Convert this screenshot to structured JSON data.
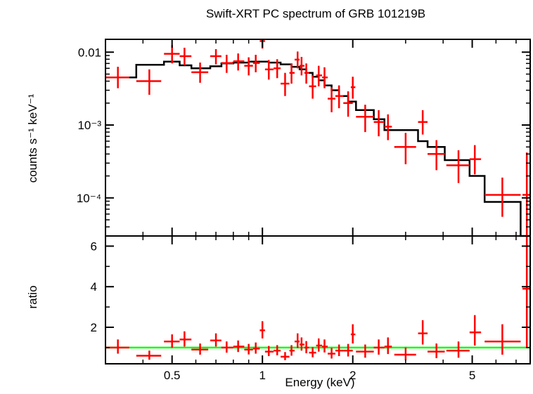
{
  "chart_data": [
    {
      "type": "scatter",
      "panel": "spectrum",
      "title": "Swift-XRT PC spectrum of GRB 101219B",
      "ylabel": "counts s⁻¹ keV⁻¹",
      "xscale": "log",
      "yscale": "log",
      "xlim": [
        0.3,
        7.8
      ],
      "ylim": [
        3e-05,
        0.015
      ],
      "y_ticks": [
        {
          "value": 0.01,
          "label": "0.01"
        },
        {
          "value": 0.001,
          "label": "10⁻³"
        },
        {
          "value": 0.0001,
          "label": "10⁻⁴"
        }
      ],
      "series": [
        {
          "kind": "data",
          "color": "#ff0000",
          "points": [
            {
              "x": 0.33,
              "xlo": 0.3,
              "xhi": 0.36,
              "y": 0.0045,
              "ylo": 0.0032,
              "yhi": 0.0063
            },
            {
              "x": 0.42,
              "xlo": 0.38,
              "xhi": 0.46,
              "y": 0.004,
              "ylo": 0.0026,
              "yhi": 0.0058
            },
            {
              "x": 0.5,
              "xlo": 0.47,
              "xhi": 0.53,
              "y": 0.0095,
              "ylo": 0.007,
              "yhi": 0.0125
            },
            {
              "x": 0.55,
              "xlo": 0.53,
              "xhi": 0.58,
              "y": 0.0088,
              "ylo": 0.0066,
              "yhi": 0.0115
            },
            {
              "x": 0.62,
              "xlo": 0.58,
              "xhi": 0.66,
              "y": 0.0053,
              "ylo": 0.0038,
              "yhi": 0.0072
            },
            {
              "x": 0.7,
              "xlo": 0.67,
              "xhi": 0.73,
              "y": 0.0088,
              "ylo": 0.0068,
              "yhi": 0.011
            },
            {
              "x": 0.76,
              "xlo": 0.73,
              "xhi": 0.8,
              "y": 0.0071,
              "ylo": 0.0052,
              "yhi": 0.0092
            },
            {
              "x": 0.83,
              "xlo": 0.8,
              "xhi": 0.87,
              "y": 0.0075,
              "ylo": 0.0056,
              "yhi": 0.0096
            },
            {
              "x": 0.9,
              "xlo": 0.87,
              "xhi": 0.93,
              "y": 0.0065,
              "ylo": 0.0048,
              "yhi": 0.0085
            },
            {
              "x": 0.95,
              "xlo": 0.93,
              "xhi": 0.98,
              "y": 0.0071,
              "ylo": 0.0053,
              "yhi": 0.0092
            },
            {
              "x": 1.0,
              "xlo": 0.98,
              "xhi": 1.02,
              "y": 0.0142,
              "ylo": 0.0112,
              "yhi": 0.018
            },
            {
              "x": 1.05,
              "xlo": 1.02,
              "xhi": 1.09,
              "y": 0.0058,
              "ylo": 0.0042,
              "yhi": 0.0078
            },
            {
              "x": 1.12,
              "xlo": 1.09,
              "xhi": 1.15,
              "y": 0.006,
              "ylo": 0.0044,
              "yhi": 0.008
            },
            {
              "x": 1.19,
              "xlo": 1.15,
              "xhi": 1.23,
              "y": 0.0037,
              "ylo": 0.0025,
              "yhi": 0.0052
            },
            {
              "x": 1.25,
              "xlo": 1.23,
              "xhi": 1.28,
              "y": 0.0052,
              "ylo": 0.0037,
              "yhi": 0.007
            },
            {
              "x": 1.31,
              "xlo": 1.28,
              "xhi": 1.33,
              "y": 0.0079,
              "ylo": 0.006,
              "yhi": 0.0102
            },
            {
              "x": 1.35,
              "xlo": 1.33,
              "xhi": 1.38,
              "y": 0.0065,
              "ylo": 0.0048,
              "yhi": 0.0086
            },
            {
              "x": 1.4,
              "xlo": 1.38,
              "xhi": 1.43,
              "y": 0.0052,
              "ylo": 0.0037,
              "yhi": 0.007
            },
            {
              "x": 1.47,
              "xlo": 1.43,
              "xhi": 1.51,
              "y": 0.0034,
              "ylo": 0.0023,
              "yhi": 0.0048
            },
            {
              "x": 1.54,
              "xlo": 1.51,
              "xhi": 1.58,
              "y": 0.0048,
              "ylo": 0.0034,
              "yhi": 0.0065
            },
            {
              "x": 1.61,
              "xlo": 1.58,
              "xhi": 1.65,
              "y": 0.0045,
              "ylo": 0.0032,
              "yhi": 0.0062
            },
            {
              "x": 1.7,
              "xlo": 1.65,
              "xhi": 1.75,
              "y": 0.0023,
              "ylo": 0.0015,
              "yhi": 0.0033
            },
            {
              "x": 1.8,
              "xlo": 1.75,
              "xhi": 1.86,
              "y": 0.0025,
              "ylo": 0.0017,
              "yhi": 0.0035
            },
            {
              "x": 1.93,
              "xlo": 1.86,
              "xhi": 2.0,
              "y": 0.002,
              "ylo": 0.0013,
              "yhi": 0.0029
            },
            {
              "x": 2.0,
              "xlo": 1.97,
              "xhi": 2.04,
              "y": 0.0033,
              "ylo": 0.0023,
              "yhi": 0.0046
            },
            {
              "x": 2.2,
              "xlo": 2.05,
              "xhi": 2.35,
              "y": 0.0013,
              "ylo": 0.0008,
              "yhi": 0.0019
            },
            {
              "x": 2.44,
              "xlo": 2.35,
              "xhi": 2.55,
              "y": 0.0011,
              "ylo": 0.0007,
              "yhi": 0.0016
            },
            {
              "x": 2.62,
              "xlo": 2.55,
              "xhi": 2.7,
              "y": 0.00095,
              "ylo": 0.00062,
              "yhi": 0.0014
            },
            {
              "x": 3.0,
              "xlo": 2.75,
              "xhi": 3.25,
              "y": 0.0005,
              "ylo": 0.00029,
              "yhi": 0.00078
            },
            {
              "x": 3.42,
              "xlo": 3.3,
              "xhi": 3.55,
              "y": 0.0011,
              "ylo": 0.00074,
              "yhi": 0.0016
            },
            {
              "x": 3.8,
              "xlo": 3.55,
              "xhi": 4.05,
              "y": 0.0004,
              "ylo": 0.00024,
              "yhi": 0.00062
            },
            {
              "x": 4.5,
              "xlo": 4.1,
              "xhi": 4.9,
              "y": 0.00028,
              "ylo": 0.00016,
              "yhi": 0.00045
            },
            {
              "x": 5.1,
              "xlo": 4.9,
              "xhi": 5.35,
              "y": 0.00034,
              "ylo": 0.00021,
              "yhi": 0.00053
            },
            {
              "x": 6.3,
              "xlo": 5.5,
              "xhi": 7.25,
              "y": 0.00011,
              "ylo": 5.5e-05,
              "yhi": 0.00019
            },
            {
              "x": 7.6,
              "xlo": 7.35,
              "xhi": 7.8,
              "y": 0.00011,
              "ylo": 2e-05,
              "yhi": 0.00042
            }
          ]
        },
        {
          "kind": "model",
          "style": "step",
          "color": "#000000",
          "steps": [
            {
              "xlo": 0.3,
              "xhi": 0.38,
              "y": 0.0045
            },
            {
              "xlo": 0.38,
              "xhi": 0.47,
              "y": 0.0067
            },
            {
              "xlo": 0.47,
              "xhi": 0.53,
              "y": 0.0074
            },
            {
              "xlo": 0.53,
              "xhi": 0.58,
              "y": 0.0066
            },
            {
              "xlo": 0.58,
              "xhi": 0.67,
              "y": 0.006
            },
            {
              "xlo": 0.67,
              "xhi": 0.73,
              "y": 0.0064
            },
            {
              "xlo": 0.73,
              "xhi": 0.8,
              "y": 0.007
            },
            {
              "xlo": 0.8,
              "xhi": 0.9,
              "y": 0.0072
            },
            {
              "xlo": 0.9,
              "xhi": 1.05,
              "y": 0.0074
            },
            {
              "xlo": 1.05,
              "xhi": 1.15,
              "y": 0.0072
            },
            {
              "xlo": 1.15,
              "xhi": 1.25,
              "y": 0.0068
            },
            {
              "xlo": 1.25,
              "xhi": 1.33,
              "y": 0.0063
            },
            {
              "xlo": 1.33,
              "xhi": 1.4,
              "y": 0.0058
            },
            {
              "xlo": 1.4,
              "xhi": 1.47,
              "y": 0.0052
            },
            {
              "xlo": 1.47,
              "xhi": 1.54,
              "y": 0.0046
            },
            {
              "xlo": 1.54,
              "xhi": 1.61,
              "y": 0.0041
            },
            {
              "xlo": 1.61,
              "xhi": 1.7,
              "y": 0.0035
            },
            {
              "xlo": 1.7,
              "xhi": 1.8,
              "y": 0.003
            },
            {
              "xlo": 1.8,
              "xhi": 1.93,
              "y": 0.0025
            },
            {
              "xlo": 1.93,
              "xhi": 2.05,
              "y": 0.0021
            },
            {
              "xlo": 2.05,
              "xhi": 2.35,
              "y": 0.0016
            },
            {
              "xlo": 2.35,
              "xhi": 2.55,
              "y": 0.0012
            },
            {
              "xlo": 2.55,
              "xhi": 3.3,
              "y": 0.00085
            },
            {
              "xlo": 3.3,
              "xhi": 3.55,
              "y": 0.0006
            },
            {
              "xlo": 3.55,
              "xhi": 4.05,
              "y": 0.0005
            },
            {
              "xlo": 4.05,
              "xhi": 4.9,
              "y": 0.00033
            },
            {
              "xlo": 4.9,
              "xhi": 5.5,
              "y": 0.0002
            },
            {
              "xlo": 5.5,
              "xhi": 7.25,
              "y": 8.8e-05
            },
            {
              "xlo": 7.25,
              "xhi": 7.8,
              "y": 2.8e-05
            }
          ]
        }
      ]
    },
    {
      "type": "scatter",
      "panel": "ratio",
      "xlabel": "Energy (keV)",
      "ylabel": "ratio",
      "xscale": "log",
      "yscale": "linear",
      "xlim": [
        0.3,
        7.8
      ],
      "ylim": [
        0.2,
        6.5
      ],
      "x_ticks": [
        {
          "value": 0.5,
          "label": "0.5"
        },
        {
          "value": 1,
          "label": "1"
        },
        {
          "value": 2,
          "label": "2"
        },
        {
          "value": 5,
          "label": "5"
        }
      ],
      "y_ticks": [
        {
          "value": 2,
          "label": "2"
        },
        {
          "value": 4,
          "label": "4"
        },
        {
          "value": 6,
          "label": "6"
        }
      ],
      "reference_line": {
        "y": 1,
        "color": "#00ff00"
      },
      "series": [
        {
          "kind": "data",
          "color": "#ff0000",
          "points": [
            {
              "x": 0.33,
              "xlo": 0.3,
              "xhi": 0.36,
              "y": 1.0,
              "ylo": 0.7,
              "yhi": 1.4
            },
            {
              "x": 0.42,
              "xlo": 0.38,
              "xhi": 0.46,
              "y": 0.6,
              "ylo": 0.4,
              "yhi": 0.85
            },
            {
              "x": 0.5,
              "xlo": 0.47,
              "xhi": 0.53,
              "y": 1.3,
              "ylo": 1.0,
              "yhi": 1.65
            },
            {
              "x": 0.55,
              "xlo": 0.53,
              "xhi": 0.58,
              "y": 1.4,
              "ylo": 1.05,
              "yhi": 1.8
            },
            {
              "x": 0.62,
              "xlo": 0.58,
              "xhi": 0.66,
              "y": 0.9,
              "ylo": 0.65,
              "yhi": 1.2
            },
            {
              "x": 0.7,
              "xlo": 0.67,
              "xhi": 0.73,
              "y": 1.35,
              "ylo": 1.05,
              "yhi": 1.7
            },
            {
              "x": 0.76,
              "xlo": 0.73,
              "xhi": 0.8,
              "y": 1.0,
              "ylo": 0.75,
              "yhi": 1.3
            },
            {
              "x": 0.83,
              "xlo": 0.8,
              "xhi": 0.87,
              "y": 1.05,
              "ylo": 0.78,
              "yhi": 1.35
            },
            {
              "x": 0.9,
              "xlo": 0.87,
              "xhi": 0.93,
              "y": 0.9,
              "ylo": 0.66,
              "yhi": 1.18
            },
            {
              "x": 0.95,
              "xlo": 0.93,
              "xhi": 0.98,
              "y": 0.95,
              "ylo": 0.7,
              "yhi": 1.25
            },
            {
              "x": 1.0,
              "xlo": 0.98,
              "xhi": 1.02,
              "y": 1.85,
              "ylo": 1.45,
              "yhi": 2.3
            },
            {
              "x": 1.05,
              "xlo": 1.02,
              "xhi": 1.09,
              "y": 0.8,
              "ylo": 0.58,
              "yhi": 1.08
            },
            {
              "x": 1.12,
              "xlo": 1.09,
              "xhi": 1.15,
              "y": 0.85,
              "ylo": 0.62,
              "yhi": 1.12
            },
            {
              "x": 1.19,
              "xlo": 1.15,
              "xhi": 1.23,
              "y": 0.55,
              "ylo": 0.38,
              "yhi": 0.78
            },
            {
              "x": 1.25,
              "xlo": 1.23,
              "xhi": 1.28,
              "y": 0.85,
              "ylo": 0.6,
              "yhi": 1.12
            },
            {
              "x": 1.31,
              "xlo": 1.28,
              "xhi": 1.33,
              "y": 1.3,
              "ylo": 0.98,
              "yhi": 1.7
            },
            {
              "x": 1.35,
              "xlo": 1.33,
              "xhi": 1.38,
              "y": 1.15,
              "ylo": 0.85,
              "yhi": 1.5
            },
            {
              "x": 1.4,
              "xlo": 1.38,
              "xhi": 1.43,
              "y": 1.0,
              "ylo": 0.72,
              "yhi": 1.32
            },
            {
              "x": 1.47,
              "xlo": 1.43,
              "xhi": 1.51,
              "y": 0.75,
              "ylo": 0.52,
              "yhi": 1.02
            },
            {
              "x": 1.54,
              "xlo": 1.51,
              "xhi": 1.58,
              "y": 1.1,
              "ylo": 0.8,
              "yhi": 1.45
            },
            {
              "x": 1.61,
              "xlo": 1.58,
              "xhi": 1.65,
              "y": 1.05,
              "ylo": 0.76,
              "yhi": 1.4
            },
            {
              "x": 1.7,
              "xlo": 1.65,
              "xhi": 1.75,
              "y": 0.7,
              "ylo": 0.46,
              "yhi": 0.98
            },
            {
              "x": 1.8,
              "xlo": 1.75,
              "xhi": 1.86,
              "y": 0.85,
              "ylo": 0.58,
              "yhi": 1.15
            },
            {
              "x": 1.93,
              "xlo": 1.86,
              "xhi": 2.0,
              "y": 0.85,
              "ylo": 0.56,
              "yhi": 1.18
            },
            {
              "x": 2.0,
              "xlo": 1.97,
              "xhi": 2.04,
              "y": 1.65,
              "ylo": 1.2,
              "yhi": 2.15
            },
            {
              "x": 2.2,
              "xlo": 2.05,
              "xhi": 2.35,
              "y": 0.8,
              "ylo": 0.5,
              "yhi": 1.15
            },
            {
              "x": 2.44,
              "xlo": 2.35,
              "xhi": 2.55,
              "y": 1.0,
              "ylo": 0.65,
              "yhi": 1.4
            },
            {
              "x": 2.62,
              "xlo": 2.55,
              "xhi": 2.7,
              "y": 1.05,
              "ylo": 0.68,
              "yhi": 1.5
            },
            {
              "x": 3.0,
              "xlo": 2.75,
              "xhi": 3.25,
              "y": 0.65,
              "ylo": 0.38,
              "yhi": 1.0
            },
            {
              "x": 3.42,
              "xlo": 3.3,
              "xhi": 3.55,
              "y": 1.7,
              "ylo": 1.15,
              "yhi": 2.35
            },
            {
              "x": 3.8,
              "xlo": 3.55,
              "xhi": 4.05,
              "y": 0.8,
              "ylo": 0.48,
              "yhi": 1.2
            },
            {
              "x": 4.5,
              "xlo": 4.1,
              "xhi": 4.9,
              "y": 0.85,
              "ylo": 0.5,
              "yhi": 1.3
            },
            {
              "x": 5.1,
              "xlo": 4.9,
              "xhi": 5.35,
              "y": 1.75,
              "ylo": 1.1,
              "yhi": 2.6
            },
            {
              "x": 6.3,
              "xlo": 5.5,
              "xhi": 7.25,
              "y": 1.3,
              "ylo": 0.65,
              "yhi": 2.15
            },
            {
              "x": 7.6,
              "xlo": 7.35,
              "xhi": 7.8,
              "y": 3.9,
              "ylo": 1.0,
              "yhi": 6.5
            }
          ]
        }
      ]
    }
  ]
}
